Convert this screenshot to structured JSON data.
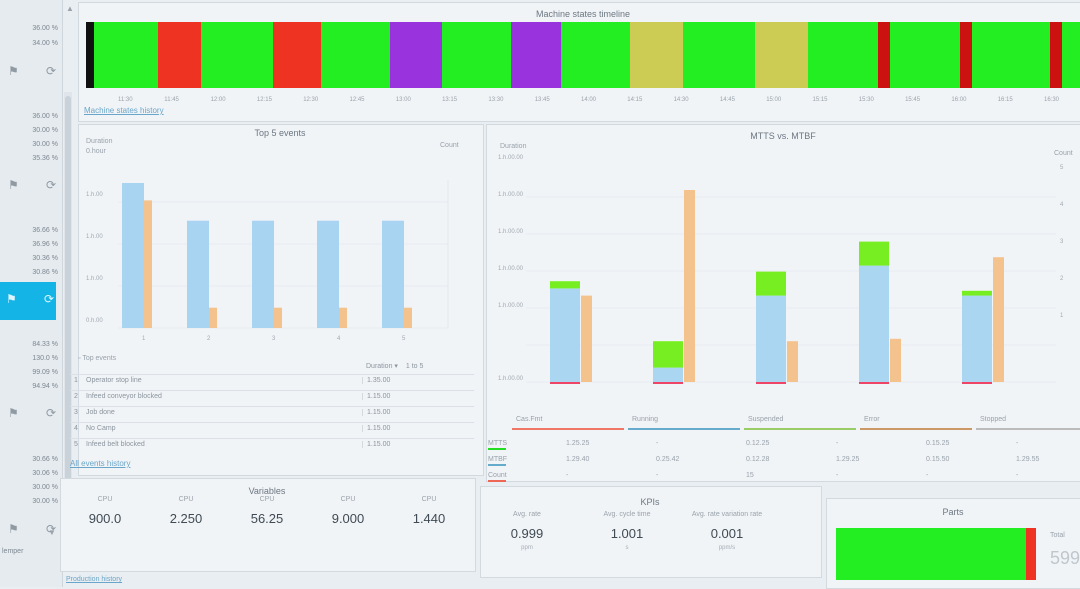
{
  "left_rail": {
    "group1": [
      "36.00 %",
      "34.00 %"
    ],
    "group2": [
      "36.00 %",
      "30.00 %",
      "30.00 %",
      "35.36 %"
    ],
    "group3": [
      "36.66 %",
      "36.96 %",
      "30.36 %",
      "30.86 %"
    ],
    "group4": [
      "84.33 %",
      "130.0 %",
      "99.09 %",
      "94.94 %"
    ],
    "group5": [
      "30.66 %",
      "30.06 %",
      "30.00 %",
      "30.00 %"
    ],
    "bottom_label": "lemper"
  },
  "timeline": {
    "title": "Machine states timeline",
    "link": "Machine states history",
    "ticks": [
      "11:30",
      "11:45",
      "12:00",
      "12:15",
      "12:30",
      "12:45",
      "13:00",
      "13:15",
      "13:30",
      "13:45",
      "14:00",
      "14:15",
      "14:30",
      "14:45",
      "15:00",
      "15:15",
      "15:30",
      "15:45",
      "16:00",
      "16:15",
      "16:30"
    ],
    "colors": {
      "run": "#22ee22",
      "stop": "#ee3322",
      "setup": "#9933dd",
      "idle": "#cccc55",
      "fault": "#cc1111"
    },
    "segments": [
      {
        "state": "run",
        "from": 0.008,
        "to": 0.072
      },
      {
        "state": "stop",
        "from": 0.072,
        "to": 0.116
      },
      {
        "state": "run",
        "from": 0.116,
        "to": 0.188
      },
      {
        "state": "stop",
        "from": 0.188,
        "to": 0.236
      },
      {
        "state": "run",
        "from": 0.236,
        "to": 0.306
      },
      {
        "state": "setup",
        "from": 0.306,
        "to": 0.358
      },
      {
        "state": "run",
        "from": 0.358,
        "to": 0.428
      },
      {
        "state": "setup",
        "from": 0.428,
        "to": 0.478
      },
      {
        "state": "run",
        "from": 0.478,
        "to": 0.547
      },
      {
        "state": "idle",
        "from": 0.547,
        "to": 0.601
      },
      {
        "state": "run",
        "from": 0.601,
        "to": 0.673
      },
      {
        "state": "idle",
        "from": 0.673,
        "to": 0.726
      },
      {
        "state": "run",
        "from": 0.726,
        "to": 0.797
      },
      {
        "state": "fault",
        "from": 0.797,
        "to": 0.809
      },
      {
        "state": "run",
        "from": 0.809,
        "to": 0.879
      },
      {
        "state": "fault",
        "from": 0.879,
        "to": 0.891
      },
      {
        "state": "run",
        "from": 0.891,
        "to": 0.97
      },
      {
        "state": "fault",
        "from": 0.97,
        "to": 0.982
      },
      {
        "state": "run",
        "from": 0.982,
        "to": 1.0
      }
    ]
  },
  "top5": {
    "title": "Top 5 events",
    "ylabel_left": "Duration",
    "unit_left": "0.hour",
    "ylabel_right": "Count",
    "yticks": [
      "1.h.00",
      "1.h.00",
      "1.h.00",
      "0.h.00"
    ],
    "xticks": [
      "1",
      "2",
      "3",
      "4",
      "5"
    ],
    "colors": {
      "duration": "#a8d4f2",
      "count": "#f4c28c"
    },
    "duration": [
      1.0,
      0.74,
      0.74,
      0.74,
      0.74
    ],
    "count": [
      0.88,
      0.14,
      0.14,
      0.14,
      0.14
    ],
    "header": "Top events",
    "dropdown": "Duration",
    "dropdown2": "1 to 5",
    "rows": [
      {
        "label": "Operator stop line",
        "value": "1.35.00"
      },
      {
        "label": "Infeed conveyor blocked",
        "value": "1.15.00"
      },
      {
        "label": "Job done",
        "value": "1.15.00"
      },
      {
        "label": "No Camp",
        "value": "1.15.00"
      },
      {
        "label": "Infeed belt blocked",
        "value": "1.15.00"
      }
    ],
    "row_index": [
      "1",
      "2",
      "3",
      "4",
      "5"
    ],
    "link": "All events history"
  },
  "mtts": {
    "title": "MTTS vs. MTBF",
    "ylabel_left": "Duration",
    "yticks": [
      "1.h.00.00",
      "1.h.00.00",
      "1.h.00.00",
      "1.h.00.00",
      "1.h.00.00",
      "1.h.00.00"
    ],
    "ylabel_right": "Count",
    "rticks": [
      "5",
      "4",
      "3",
      "2",
      "1"
    ],
    "colors": {
      "base": "#aad6f2",
      "top": "#77ee22",
      "count": "#f4c28c",
      "under": "#ee4466"
    },
    "bars": [
      {
        "base": 0.78,
        "top": 0.06,
        "count": 0.72
      },
      {
        "base": 0.12,
        "top": 0.22,
        "count": 1.6
      },
      {
        "base": 0.72,
        "top": 0.2,
        "count": 0.34
      },
      {
        "base": 0.97,
        "top": 0.2,
        "count": 0.36
      },
      {
        "base": 0.72,
        "top": 0.04,
        "count": 1.04
      }
    ],
    "legend": [
      "Cas.Fmt",
      "Running",
      "Suspended",
      "Error",
      "Stopped"
    ],
    "legend_colors": [
      "#ee7766",
      "#66aacc",
      "#99cc66",
      "#cc9966",
      "#bbbbbb"
    ],
    "row_labels": [
      "MTTS",
      "MTBF",
      "Count"
    ],
    "rows": [
      [
        "1.25.25",
        "-",
        "0.12.25",
        "-",
        "0.15.25",
        "-"
      ],
      [
        "1.29.40",
        "0.25.42",
        "0.12.28",
        "1.29.25",
        "0.15.50",
        "1.29.55"
      ],
      [
        "-",
        "-",
        "15",
        "-",
        "-",
        "-"
      ]
    ]
  },
  "variables": {
    "title": "Variables",
    "items": [
      {
        "label": "CPU",
        "value": "900.0"
      },
      {
        "label": "CPU",
        "value": "2.250"
      },
      {
        "label": "CPU",
        "value": "56.25"
      },
      {
        "label": "CPU",
        "value": "9.000"
      },
      {
        "label": "CPU",
        "value": "1.440"
      }
    ]
  },
  "kpis": {
    "title": "KPIs",
    "items": [
      {
        "label": "Avg. rate",
        "value": "0.999",
        "unit": "ppm"
      },
      {
        "label": "Avg. cycle time",
        "value": "1.001",
        "unit": "s"
      },
      {
        "label": "Avg. rate variation rate",
        "value": "0.001",
        "unit": "ppm/s"
      }
    ]
  },
  "parts": {
    "title": "Parts",
    "good_color": "#22ee22",
    "bad_color": "#ee3322",
    "good_fraction": 0.95,
    "side_label": "Total",
    "side_value": "599"
  },
  "footer_link": "Production history"
}
